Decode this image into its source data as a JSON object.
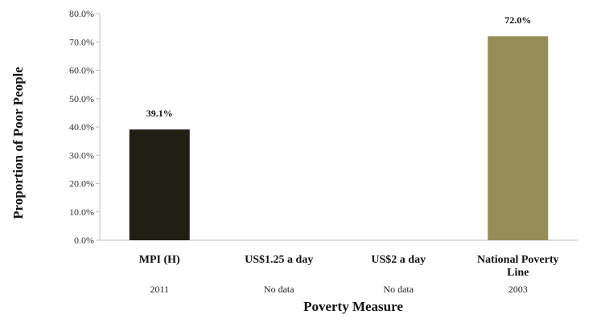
{
  "chart_data": {
    "type": "bar",
    "title": "",
    "xlabel": "Poverty Measure",
    "ylabel": "Proportion  of Poor People",
    "ylim": [
      0,
      80
    ],
    "yticks": [
      "0.0%",
      "10.0%",
      "20.0%",
      "30.0%",
      "40.0%",
      "50.0%",
      "60.0%",
      "70.0%",
      "80.0%"
    ],
    "grid": false,
    "categories": [
      "MPI (H)",
      "US$1.25 a day",
      "US$2 a day",
      "National Poverty Line"
    ],
    "years": [
      "2011",
      "No data",
      "No data",
      "2003"
    ],
    "values": [
      39.1,
      null,
      null,
      72.0
    ],
    "data_labels": [
      "39.1%",
      "",
      "",
      "72.0%"
    ],
    "bar_colors": [
      "#211f13",
      "#211f13",
      "#211f13",
      "#978d58"
    ]
  }
}
